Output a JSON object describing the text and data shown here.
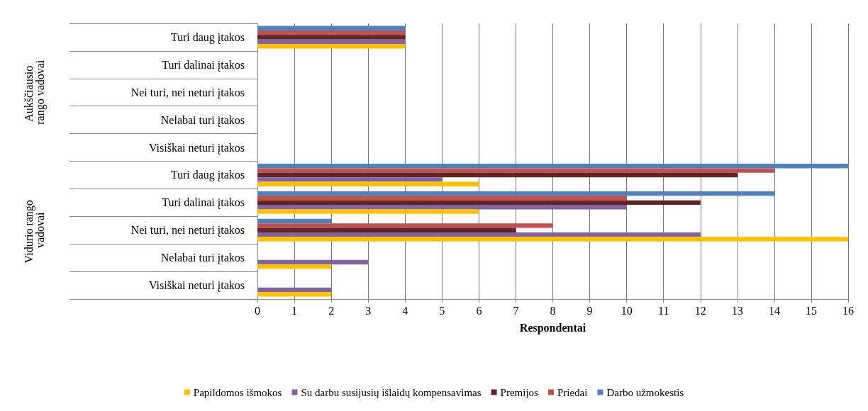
{
  "chart_data": {
    "type": "bar",
    "orientation": "horizontal",
    "xlabel": "Respondentai",
    "categories": [
      "Turi daug įtakos",
      "Turi dalinai įtakos",
      "Nei turi, nei neturi įtakos",
      "Nelabai turi įtakos",
      "Visiškai neturi įtakos",
      "Turi daug įtakos",
      "Turi dalinai įtakos",
      "Nei turi, nei neturi įtakos",
      "Nelabai turi įtakos",
      "Visiškai neturi įtakos"
    ],
    "annotations": [
      "Aukščiausio rango vadovai",
      "Vidurio rango vadovai"
    ],
    "series": [
      {
        "name": "Papildomos išmokos",
        "color": "#ffc000",
        "values": [
          4,
          0,
          0,
          0,
          0,
          6,
          6,
          16,
          2,
          2
        ]
      },
      {
        "name": "Su darbu susijusių išlaidų kompensavimas",
        "color": "#8064a2",
        "values": [
          4,
          0,
          0,
          0,
          0,
          5,
          10,
          12,
          3,
          2
        ]
      },
      {
        "name": "Premijos",
        "color": "#632523",
        "values": [
          4,
          0,
          0,
          0,
          0,
          13,
          12,
          7,
          0,
          0
        ]
      },
      {
        "name": "Priedai",
        "color": "#c0504d",
        "values": [
          4,
          0,
          0,
          0,
          0,
          14,
          10,
          8,
          0,
          0
        ]
      },
      {
        "name": "Darbo užmokestis",
        "color": "#4f81bd",
        "values": [
          4,
          0,
          0,
          0,
          0,
          16,
          14,
          2,
          0,
          0
        ]
      }
    ],
    "xlim": [
      0,
      16
    ],
    "xticks": [
      0,
      1,
      2,
      3,
      4,
      5,
      6,
      7,
      8,
      9,
      10,
      11,
      12,
      13,
      14,
      15,
      16
    ],
    "grid": "x",
    "legend": "bottom"
  }
}
